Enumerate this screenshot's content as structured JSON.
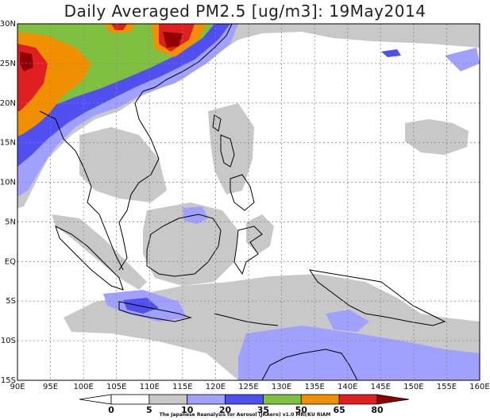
{
  "title": "Daily Averaged PM2.5 [ug/m3]: 19May2014",
  "credit": "The Japanese Reanalysis for Aerosol (JRAero) v1.0 MRI/KU RIAM",
  "lat_labels": [
    "30N",
    "25N",
    "20N",
    "15N",
    "10N",
    "5N",
    "EQ",
    "5S",
    "10S",
    "15S"
  ],
  "lon_labels": [
    "90E",
    "95E",
    "100E",
    "105E",
    "110E",
    "115E",
    "120E",
    "125E",
    "130E",
    "135E",
    "140E",
    "145E",
    "150E",
    "155E",
    "160E"
  ],
  "colorbar": {
    "levels": [
      "0",
      "5",
      "10",
      "20",
      "35",
      "50",
      "65",
      "80"
    ],
    "colors": [
      "#ffffff",
      "#ffffff",
      "#c8c8c8",
      "#a0a0ff",
      "#5050f0",
      "#80c040",
      "#f09000",
      "#e02020",
      "#900000"
    ]
  },
  "legend_colors": {
    "bin_5_10": "#c8c8c8",
    "bin_10_20": "#a0a0ff",
    "bin_20_35": "#5050f0",
    "bin_35_50": "#80c040",
    "bin_50_65": "#f09000",
    "bin_65_80": "#e02020",
    "bin_80_plus": "#900000"
  }
}
